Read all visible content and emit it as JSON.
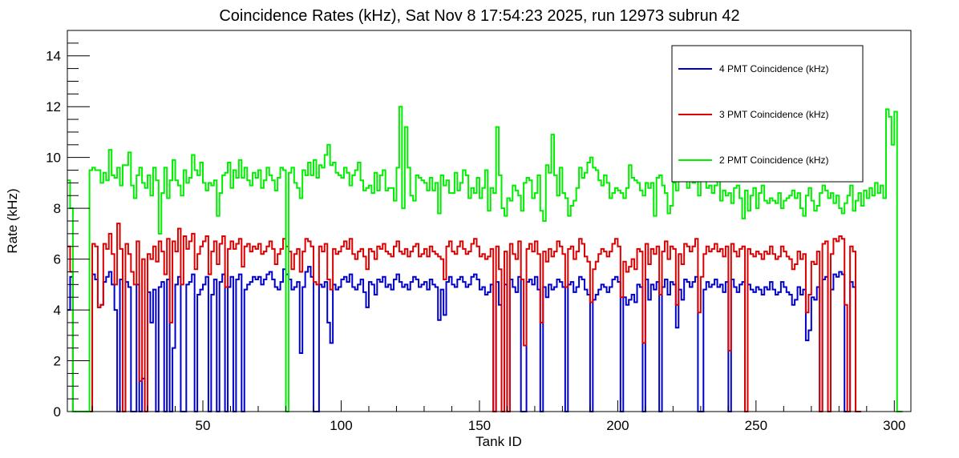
{
  "chart_data": {
    "type": "line",
    "step": true,
    "title": "Coincidence Rates (kHz), Sat Nov  8 17:54:23 2025, run 12973 subrun 42",
    "xlabel": "Tank ID",
    "ylabel": "Rate (kHz)",
    "xlim": [
      1,
      306
    ],
    "ylim": [
      0,
      15
    ],
    "x_ticks": [
      50,
      100,
      150,
      200,
      250,
      300
    ],
    "y_ticks": [
      0,
      2,
      4,
      6,
      8,
      10,
      12,
      14
    ],
    "grid": false,
    "legend_position": "top-right",
    "x_start": 1,
    "bin_width": 1,
    "series": [
      {
        "name": "4 PMT Coincidence (kHz)",
        "color": "#0000cc",
        "values": [
          4.0,
          5.3,
          0,
          0,
          0,
          0,
          0,
          0,
          0,
          5.4,
          5.2,
          4.1,
          4.2,
          5.1,
          5.3,
          5.5,
          5.0,
          4.0,
          0,
          5.2,
          0,
          5.1,
          4.9,
          0,
          0,
          5.0,
          0,
          1.3,
          0,
          4.7,
          3.5,
          4.8,
          0,
          4.9,
          5.1,
          0,
          5.2,
          0,
          2.5,
          5.0,
          5.3,
          0,
          0,
          5.0,
          5.1,
          5.4,
          0,
          4.6,
          4.8,
          5.0,
          5.3,
          0,
          4.6,
          5.2,
          0,
          5.1,
          5.4,
          0,
          4.9,
          5.3,
          0,
          5.2,
          5.4,
          0,
          4.8,
          5.0,
          5.1,
          5.3,
          5.2,
          5.3,
          5.0,
          5.2,
          5.4,
          5.5,
          5.2,
          4.9,
          4.8,
          5.1,
          5.6,
          5.4,
          5.2,
          4.8,
          4.9,
          5.1,
          2.3,
          4.9,
          5.5,
          5.7,
          5.3,
          0,
          0,
          5.0,
          4.9,
          5.1,
          3.5,
          2.7,
          5.0,
          4.8,
          4.9,
          5.2,
          5.3,
          5.1,
          5.4,
          4.9,
          4.8,
          5.0,
          5.2,
          4.7,
          4.1,
          5.1,
          5.0,
          4.6,
          5.2,
          5.1,
          5.3,
          4.9,
          5.0,
          4.8,
          5.2,
          5.4,
          5.1,
          4.9,
          5.0,
          4.8,
          5.1,
          5.3,
          5.2,
          4.9,
          5.0,
          5.1,
          4.8,
          5.2,
          5.0,
          4.9,
          3.6,
          4.8,
          3.8,
          5.1,
          5.3,
          5.0,
          4.9,
          5.2,
          5.3,
          5.1,
          4.9,
          5.0,
          5.3,
          5.4,
          5.2,
          4.8,
          4.9,
          4.6,
          4.7,
          5.0,
          0,
          5.1,
          4.2,
          0,
          5.0,
          0,
          5.2,
          4.9,
          4.7,
          5.3,
          0,
          0,
          5.1,
          5.2,
          5.0,
          5.3,
          4.8,
          0,
          4.9,
          4.5,
          5.0,
          4.8,
          4.9,
          5.2,
          5.1,
          4.9,
          0,
          5.0,
          5.1,
          4.7,
          4.9,
          5.3,
          5.2,
          4.8,
          4.6,
          0,
          4.4,
          4.6,
          4.8,
          5.0,
          4.9,
          4.7,
          4.9,
          5.2,
          5.3,
          5.1,
          0,
          4.5,
          4.2,
          4.4,
          4.6,
          4.3,
          5.0,
          4.9,
          0,
          5.2,
          4.4,
          5.0,
          4.8,
          5.1,
          0,
          4.9,
          5.2,
          4.6,
          5.1,
          5.0,
          3.3,
          4.8,
          4.4,
          5.2,
          5.1,
          4.9,
          5.1,
          5.3,
          0,
          0,
          4.8,
          5.1,
          4.9,
          5.0,
          5.2,
          4.9,
          5.0,
          4.7,
          5.1,
          0,
          5.2,
          4.9,
          4.7,
          5.0,
          5.1,
          0,
          5.0,
          4.8,
          4.7,
          4.9,
          4.8,
          4.6,
          4.9,
          4.8,
          5.1,
          4.8,
          4.6,
          4.7,
          5.1,
          4.9,
          4.7,
          4.6,
          4.2,
          4.4,
          4.9,
          4.6,
          4.8,
          2.8,
          3.2,
          4.5,
          4.4,
          4.9,
          0,
          5.2,
          5.3,
          0,
          4.8,
          5.4,
          5.3,
          5.5,
          5.4,
          0,
          0,
          5.1,
          4.9,
          0,
          0
        ]
      },
      {
        "name": "3 PMT Coincidence (kHz)",
        "color": "#dd0000",
        "values": [
          6.5,
          5.5,
          0,
          0,
          0,
          0,
          0,
          0,
          0,
          6.6,
          6.5,
          4.1,
          4.2,
          6.6,
          6.4,
          7.0,
          6.2,
          5.0,
          7.4,
          6.4,
          0,
          6.6,
          6.2,
          5.5,
          5.0,
          6.7,
          1.2,
          6.0,
          0,
          6.2,
          6.0,
          6.5,
          5.9,
          6.7,
          6.3,
          5.4,
          6.8,
          3.5,
          6.7,
          6.3,
          7.2,
          5.0,
          6.9,
          6.4,
          6.7,
          7.0,
          5.6,
          6.2,
          6.5,
          6.7,
          6.9,
          5.4,
          6.3,
          6.7,
          5.8,
          6.6,
          6.9,
          4.9,
          6.4,
          6.7,
          6.4,
          6.6,
          6.8,
          5.7,
          6.5,
          6.6,
          6.3,
          6.5,
          6.4,
          6.6,
          6.2,
          6.3,
          6.5,
          6.7,
          6.4,
          5.8,
          6.2,
          6.4,
          6.8,
          6.5,
          6.3,
          5.6,
          6.2,
          6.4,
          5.5,
          6.3,
          6.8,
          6.7,
          6.5,
          5.1,
          5.0,
          6.5,
          6.3,
          6.6,
          5.2,
          4.8,
          6.4,
          6.2,
          6.3,
          6.5,
          6.7,
          6.4,
          6.8,
          6.2,
          6.0,
          6.3,
          6.4,
          6.1,
          5.6,
          6.4,
          6.3,
          6.0,
          6.5,
          6.4,
          6.6,
          6.3,
          6.2,
          6.1,
          6.5,
          6.7,
          6.3,
          6.2,
          6.4,
          6.1,
          6.3,
          6.5,
          6.6,
          6.1,
          6.2,
          6.4,
          6.1,
          6.5,
          6.3,
          6.2,
          6.1,
          6.0,
          5.2,
          6.5,
          6.7,
          6.3,
          6.2,
          6.5,
          6.7,
          6.4,
          6.2,
          6.3,
          6.6,
          6.8,
          6.5,
          6.1,
          6.2,
          6.0,
          6.1,
          6.4,
          0,
          6.5,
          5.6,
          0,
          6.3,
          0,
          6.6,
          6.2,
          6.0,
          6.7,
          5.2,
          2.6,
          6.4,
          6.6,
          6.3,
          6.7,
          6.2,
          3.5,
          6.3,
          5.9,
          6.4,
          6.1,
          6.3,
          6.7,
          6.5,
          6.2,
          4.9,
          6.4,
          6.5,
          6.0,
          6.3,
          6.8,
          6.6,
          6.1,
          5.9,
          4.3,
          5.6,
          5.9,
          6.2,
          6.4,
          6.3,
          6.1,
          6.3,
          6.6,
          6.8,
          6.5,
          4.5,
          5.9,
          5.5,
          5.7,
          6.0,
          5.6,
          6.4,
          6.3,
          2.7,
          6.6,
          5.8,
          6.4,
          6.2,
          6.5,
          4.6,
          6.3,
          6.7,
          6.0,
          6.5,
          6.4,
          4.2,
          6.2,
          5.8,
          6.6,
          6.5,
          6.3,
          6.5,
          6.8,
          3.9,
          5.3,
          6.2,
          6.5,
          6.3,
          6.4,
          6.6,
          6.3,
          6.4,
          6.1,
          6.5,
          2.4,
          6.6,
          6.3,
          6.1,
          6.4,
          6.5,
          0,
          6.4,
          6.2,
          6.1,
          6.3,
          6.2,
          6.0,
          6.3,
          6.2,
          6.5,
          6.2,
          6.0,
          6.1,
          6.5,
          6.3,
          6.1,
          6.0,
          5.6,
          5.8,
          6.3,
          6.0,
          6.2,
          3.9,
          4.6,
          5.9,
          5.8,
          6.3,
          0,
          6.6,
          6.7,
          0,
          6.2,
          6.8,
          6.7,
          6.9,
          6.8,
          4.2,
          0,
          6.5,
          6.3,
          0,
          0
        ]
      },
      {
        "name": "2 PMT Coincidence (kHz)",
        "color": "#00ee00",
        "values": [
          9.1,
          8.0,
          0,
          0,
          0,
          0,
          0,
          0,
          9.5,
          9.6,
          9.5,
          9.5,
          9.0,
          9.4,
          9.1,
          10.3,
          9.3,
          9.2,
          9.6,
          8.9,
          9.7,
          9.7,
          10.2,
          8.9,
          8.4,
          9.3,
          9.6,
          9.0,
          8.8,
          9.3,
          8.5,
          9.6,
          9.1,
          7.0,
          8.6,
          9.6,
          8.4,
          9.1,
          9.9,
          9.1,
          8.9,
          8.5,
          9.5,
          9.0,
          9.2,
          10.1,
          9.5,
          9.3,
          9.8,
          9.0,
          8.7,
          9.0,
          8.9,
          9.1,
          7.7,
          8.6,
          9.3,
          9.4,
          9.8,
          8.8,
          9.5,
          9.2,
          9.9,
          9.2,
          9.6,
          9.1,
          8.9,
          9.4,
          9.2,
          9.5,
          8.8,
          9.1,
          9.6,
          9.3,
          9.1,
          8.7,
          9.2,
          9.6,
          9.5,
          0,
          9.4,
          9.6,
          9.0,
          8.8,
          8.4,
          9.5,
          9.3,
          9.8,
          9.3,
          9.9,
          9.2,
          9.7,
          9.6,
          10.1,
          10.5,
          9.7,
          9.8,
          9.4,
          9.3,
          9.2,
          9.6,
          9.4,
          8.9,
          9.3,
          9.5,
          9.8,
          9.1,
          8.7,
          8.8,
          8.9,
          8.6,
          9.4,
          8.7,
          9.3,
          9.5,
          8.7,
          8.8,
          8.8,
          8.3,
          9.6,
          12.0,
          8.0,
          11.2,
          9.6,
          8.5,
          8.3,
          9.3,
          9.2,
          9.1,
          9.0,
          8.7,
          9.2,
          8.7,
          9.0,
          7.8,
          9.3,
          8.9,
          9.1,
          8.6,
          8.6,
          9.4,
          8.7,
          9.0,
          9.5,
          9.3,
          8.4,
          8.8,
          8.6,
          9.2,
          8.4,
          8.8,
          9.5,
          7.9,
          8.8,
          8.6,
          11.2,
          9.3,
          8.0,
          7.7,
          8.4,
          8.3,
          8.9,
          8.7,
          8.5,
          7.9,
          9.0,
          9.2,
          9.1,
          8.4,
          8.6,
          9.3,
          7.9,
          7.5,
          9.7,
          9.4,
          10.9,
          9.3,
          8.5,
          9.6,
          8.6,
          8.4,
          7.7,
          8.1,
          8.3,
          8.8,
          9.6,
          9.2,
          9.4,
          9.8,
          10.0,
          9.6,
          9.5,
          9.1,
          8.9,
          9.3,
          9.0,
          8.4,
          8.6,
          8.8,
          8.7,
          8.6,
          8.4,
          8.8,
          9.7,
          9.2,
          9.1,
          9.0,
          8.7,
          8.5,
          9.0,
          8.8,
          9.0,
          7.7,
          9.2,
          9.3,
          8.9,
          8.6,
          7.8,
          8.1,
          9.0,
          8.7,
          9.5,
          9.7,
          9.2,
          8.8,
          9.4,
          9.0,
          9.1,
          8.5,
          9.3,
          9.2,
          8.8,
          8.9,
          8.6,
          8.9,
          9.2,
          8.3,
          8.7,
          8.5,
          8.6,
          8.2,
          8.8,
          8.9,
          8.4,
          7.6,
          8.7,
          7.9,
          8.5,
          8.8,
          8.0,
          8.6,
          8.9,
          8.3,
          8.2,
          8.4,
          8.3,
          8.2,
          8.6,
          8.0,
          8.3,
          8.4,
          8.5,
          8.7,
          8.4,
          8.6,
          8.0,
          7.7,
          8.5,
          8.8,
          8.3,
          7.9,
          8.1,
          8.6,
          8.9,
          8.7,
          8.4,
          8.6,
          8.2,
          8.5,
          8.0,
          7.8,
          8.2,
          8.5,
          8.9,
          7.9,
          8.3,
          8.6,
          8.1,
          8.7,
          8.4,
          8.8,
          8.5,
          9.0,
          8.6,
          8.9,
          8.4,
          11.9,
          11.6,
          10.5,
          11.8,
          0,
          0
        ]
      }
    ]
  }
}
